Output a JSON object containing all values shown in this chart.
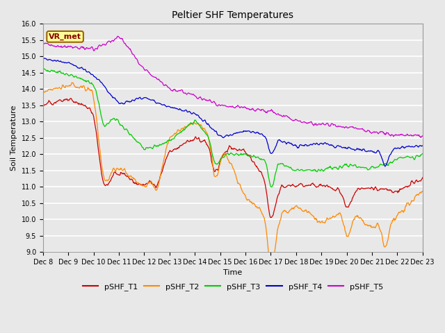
{
  "title": "Peltier SHF Temperatures",
  "xlabel": "Time",
  "ylabel": "Soil Temperature",
  "ylim": [
    9.0,
    16.0
  ],
  "yticks": [
    9.0,
    9.5,
    10.0,
    10.5,
    11.0,
    11.5,
    12.0,
    12.5,
    13.0,
    13.5,
    14.0,
    14.5,
    15.0,
    15.5,
    16.0
  ],
  "xtick_labels": [
    "Dec 8",
    "Dec 9",
    "Dec 10",
    "Dec 11",
    "Dec 12",
    "Dec 13",
    "Dec 14",
    "Dec 15",
    "Dec 16",
    "Dec 17",
    "Dec 18",
    "Dec 19",
    "Dec 20",
    "Dec 21",
    "Dec 22",
    "Dec 23"
  ],
  "series_colors": [
    "#cc0000",
    "#ff8800",
    "#00cc00",
    "#0000cc",
    "#cc00cc"
  ],
  "series_labels": [
    "pSHF_T1",
    "pSHF_T2",
    "pSHF_T3",
    "pSHF_T4",
    "pSHF_T5"
  ],
  "fig_bg_color": "#e8e8e8",
  "plot_bg_color": "#e8e8e8",
  "annotation_text": "VR_met",
  "annotation_bg": "#ffff99",
  "annotation_border": "#996600",
  "grid_color": "#ffffff",
  "n_days": 15,
  "pts_per_day": 48
}
